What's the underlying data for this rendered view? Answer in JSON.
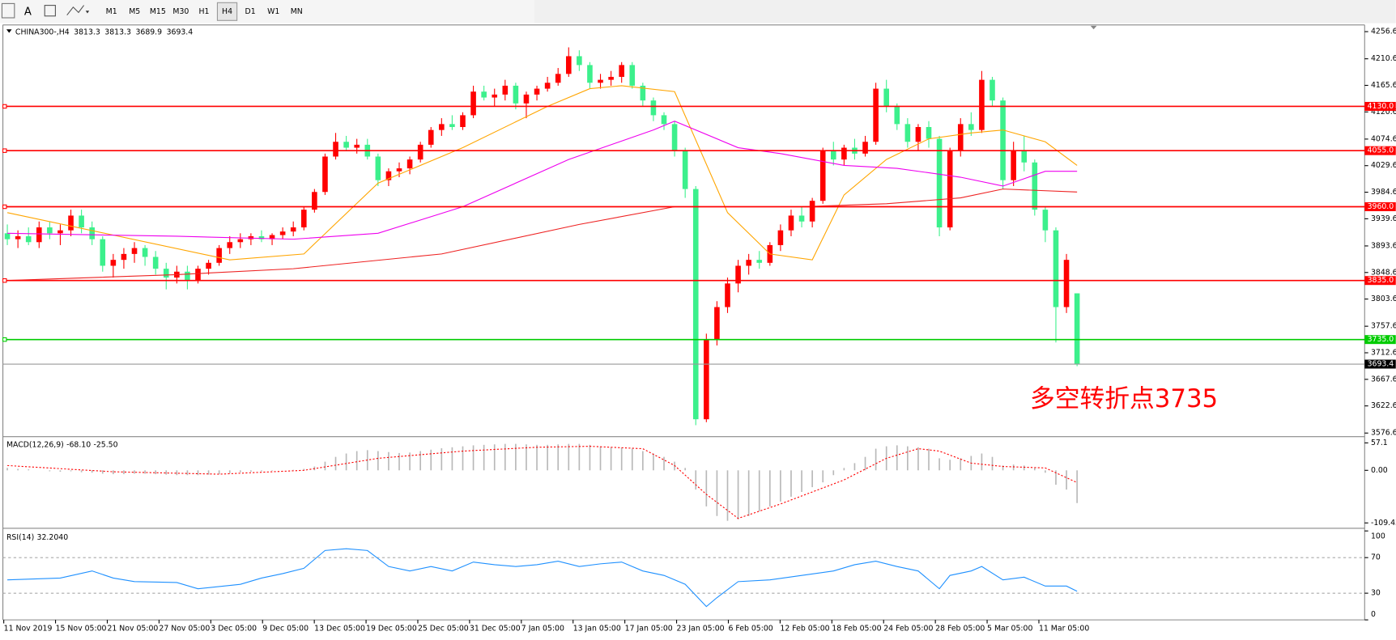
{
  "toolbar": {
    "text_tool": "A",
    "timeframes": [
      "M1",
      "M5",
      "M15",
      "M30",
      "H1",
      "H4",
      "D1",
      "W1",
      "MN"
    ],
    "active": 5
  },
  "chart": {
    "symbol": "CHINA300-,H4",
    "ylim": [
      3572,
      4265
    ],
    "price_ticks": [
      4256.6,
      4210.6,
      4165.6,
      4120.6,
      4074.6,
      4029.6,
      3984.6,
      3939.6,
      3893.6,
      3848.6,
      3803.6,
      3757.6,
      3712.6,
      3667.6,
      3622.6,
      3576.6
    ],
    "up_color": "#ff0000",
    "down_color": "#3cf08c",
    "current_color": "#000000",
    "levels": [
      {
        "value": 4130,
        "label": "4130.0",
        "color": "#ff0000"
      },
      {
        "value": 4055,
        "label": "4055.0",
        "color": "#ff0000"
      },
      {
        "value": 3960,
        "label": "3960.0",
        "color": "#ff0000"
      },
      {
        "value": 3835,
        "label": "3835.0",
        "color": "#ff0000"
      },
      {
        "value": 3735,
        "label": "3735.0",
        "color": "#00cc00"
      }
    ],
    "annotation": "多空转折点3735",
    "candles": [
      [
        3915,
        3930,
        3895,
        3905
      ],
      [
        3905,
        3920,
        3890,
        3910
      ],
      [
        3910,
        3925,
        3895,
        3900
      ],
      [
        3900,
        3935,
        3890,
        3925
      ],
      [
        3925,
        3935,
        3905,
        3915
      ],
      [
        3915,
        3930,
        3895,
        3920
      ],
      [
        3920,
        3955,
        3910,
        3945
      ],
      [
        3945,
        3955,
        3915,
        3925
      ],
      [
        3925,
        3935,
        3895,
        3905
      ],
      [
        3905,
        3910,
        3850,
        3860
      ],
      [
        3860,
        3880,
        3840,
        3870
      ],
      [
        3870,
        3890,
        3855,
        3880
      ],
      [
        3880,
        3900,
        3865,
        3890
      ],
      [
        3890,
        3895,
        3860,
        3875
      ],
      [
        3875,
        3885,
        3845,
        3855
      ],
      [
        3855,
        3865,
        3820,
        3840
      ],
      [
        3840,
        3860,
        3830,
        3850
      ],
      [
        3850,
        3860,
        3820,
        3835
      ],
      [
        3835,
        3860,
        3830,
        3855
      ],
      [
        3855,
        3870,
        3845,
        3865
      ],
      [
        3865,
        3895,
        3860,
        3890
      ],
      [
        3890,
        3910,
        3880,
        3900
      ],
      [
        3900,
        3915,
        3890,
        3905
      ],
      [
        3905,
        3915,
        3895,
        3910
      ],
      [
        3910,
        3920,
        3900,
        3905
      ],
      [
        3905,
        3915,
        3895,
        3912
      ],
      [
        3912,
        3925,
        3905,
        3918
      ],
      [
        3918,
        3935,
        3910,
        3925
      ],
      [
        3925,
        3960,
        3920,
        3955
      ],
      [
        3955,
        3990,
        3950,
        3985
      ],
      [
        3985,
        4050,
        3980,
        4045
      ],
      [
        4045,
        4085,
        4040,
        4070
      ],
      [
        4070,
        4080,
        4055,
        4060
      ],
      [
        4060,
        4075,
        4050,
        4065
      ],
      [
        4065,
        4075,
        4040,
        4045
      ],
      [
        4045,
        4050,
        3995,
        4005
      ],
      [
        4005,
        4025,
        3995,
        4020
      ],
      [
        4020,
        4035,
        4010,
        4025
      ],
      [
        4025,
        4045,
        4015,
        4040
      ],
      [
        4040,
        4070,
        4035,
        4065
      ],
      [
        4065,
        4095,
        4060,
        4090
      ],
      [
        4090,
        4110,
        4080,
        4100
      ],
      [
        4100,
        4115,
        4090,
        4095
      ],
      [
        4095,
        4120,
        4090,
        4115
      ],
      [
        4115,
        4165,
        4110,
        4155
      ],
      [
        4155,
        4165,
        4140,
        4145
      ],
      [
        4145,
        4160,
        4130,
        4150
      ],
      [
        4150,
        4175,
        4140,
        4165
      ],
      [
        4165,
        4170,
        4125,
        4135
      ],
      [
        4135,
        4155,
        4110,
        4150
      ],
      [
        4150,
        4165,
        4140,
        4160
      ],
      [
        4160,
        4180,
        4155,
        4170
      ],
      [
        4170,
        4195,
        4165,
        4185
      ],
      [
        4185,
        4230,
        4180,
        4215
      ],
      [
        4215,
        4225,
        4190,
        4200
      ],
      [
        4200,
        4205,
        4160,
        4170
      ],
      [
        4170,
        4185,
        4160,
        4175
      ],
      [
        4175,
        4190,
        4165,
        4180
      ],
      [
        4180,
        4205,
        4170,
        4200
      ],
      [
        4200,
        4205,
        4160,
        4165
      ],
      [
        4165,
        4170,
        4130,
        4140
      ],
      [
        4140,
        4145,
        4105,
        4115
      ],
      [
        4115,
        4120,
        4090,
        4100
      ],
      [
        4100,
        4105,
        4045,
        4055
      ],
      [
        4055,
        4060,
        3975,
        3990
      ],
      [
        3990,
        3995,
        3590,
        3600
      ],
      [
        3600,
        3745,
        3595,
        3735
      ],
      [
        3735,
        3800,
        3725,
        3790
      ],
      [
        3790,
        3840,
        3780,
        3830
      ],
      [
        3830,
        3870,
        3815,
        3860
      ],
      [
        3860,
        3880,
        3845,
        3870
      ],
      [
        3870,
        3885,
        3855,
        3865
      ],
      [
        3865,
        3900,
        3860,
        3895
      ],
      [
        3895,
        3930,
        3885,
        3920
      ],
      [
        3920,
        3955,
        3910,
        3945
      ],
      [
        3945,
        3960,
        3925,
        3935
      ],
      [
        3935,
        3975,
        3925,
        3970
      ],
      [
        3970,
        4060,
        3965,
        4055
      ],
      [
        4055,
        4070,
        4030,
        4040
      ],
      [
        4040,
        4065,
        4030,
        4060
      ],
      [
        4060,
        4075,
        4040,
        4050
      ],
      [
        4050,
        4080,
        4045,
        4070
      ],
      [
        4070,
        4170,
        4065,
        4160
      ],
      [
        4160,
        4175,
        4120,
        4130
      ],
      [
        4130,
        4135,
        4090,
        4100
      ],
      [
        4100,
        4110,
        4060,
        4070
      ],
      [
        4070,
        4100,
        4055,
        4095
      ],
      [
        4095,
        4105,
        4060,
        4075
      ],
      [
        4075,
        4080,
        3910,
        3925
      ],
      [
        3925,
        4060,
        3920,
        4055
      ],
      [
        4055,
        4110,
        4045,
        4100
      ],
      [
        4100,
        4120,
        4080,
        4090
      ],
      [
        4090,
        4190,
        4085,
        4175
      ],
      [
        4175,
        4180,
        4130,
        4140
      ],
      [
        4140,
        4145,
        3990,
        4005
      ],
      [
        4005,
        4070,
        3995,
        4055
      ],
      [
        4055,
        4080,
        4020,
        4035
      ],
      [
        4035,
        4040,
        3945,
        3955
      ],
      [
        3955,
        3960,
        3900,
        3920
      ],
      [
        3920,
        3925,
        3730,
        3790
      ],
      [
        3790,
        3880,
        3780,
        3870
      ],
      [
        3813.3,
        3813.3,
        3689.9,
        3693.4
      ]
    ],
    "moving_averages": [
      {
        "color": "#ffa500",
        "x": [
          0,
          21,
          28,
          35,
          43,
          51,
          55,
          58,
          63,
          68,
          72,
          76,
          79,
          83,
          87,
          91,
          94,
          98,
          101
        ],
        "values": [
          3950,
          3870,
          3880,
          4000,
          4060,
          4130,
          4160,
          4165,
          4155,
          3950,
          3880,
          3870,
          3980,
          4040,
          4075,
          4085,
          4090,
          4070,
          4030
        ]
      },
      {
        "color": "#ee00ee",
        "x": [
          0,
          16,
          27,
          35,
          43,
          53,
          61,
          63,
          69,
          73,
          79,
          84,
          90,
          94,
          98,
          101
        ],
        "values": [
          3915,
          3910,
          3905,
          3915,
          3960,
          4040,
          4090,
          4105,
          4060,
          4050,
          4030,
          4025,
          4010,
          3995,
          4020,
          4020
        ]
      },
      {
        "color": "#ee2222",
        "x": [
          0,
          16,
          27,
          41,
          54,
          63,
          75,
          83,
          90,
          94,
          101
        ],
        "values": [
          3835,
          3845,
          3855,
          3880,
          3930,
          3960,
          3960,
          3965,
          3975,
          3990,
          3985
        ]
      }
    ],
    "dates": [
      "11 Nov 2019",
      "15 Nov 05:00",
      "21 Nov 05:00",
      "27 Nov 05:00",
      "3 Dec 05:00",
      "9 Dec 05:00",
      "13 Dec 05:00",
      "19 Dec 05:00",
      "25 Dec 05:00",
      "31 Dec 05:00",
      "7 Jan 05:00",
      "13 Jan 05:00",
      "17 Jan 05:00",
      "23 Jan 05:00",
      "6 Feb 05:00",
      "12 Feb 05:00",
      "18 Feb 05:00",
      "24 Feb 05:00",
      "28 Feb 05:00",
      "5 Mar 05:00",
      "11 Mar 05:00"
    ]
  },
  "macd": {
    "name": "MACD(12,26,9)",
    "current": {
      "value": -68.1,
      "label": "-68.10"
    },
    "signal_current": {
      "value": -25.5,
      "label": "-25.50"
    },
    "ylim": [
      -109.43,
      57.1
    ],
    "ticks": [
      57.1,
      {
        "value": 0,
        "label": "0.00"
      },
      -109.43
    ],
    "hist_color": "#b8b8b8",
    "signal_color": "#ff0000",
    "histogram": [
      5,
      3,
      2,
      0,
      -2,
      -3,
      -2,
      -4,
      -5,
      -7,
      -8,
      -8,
      -7,
      -7,
      -8,
      -9,
      -10,
      -10,
      -10,
      -9,
      -8,
      -6,
      -4,
      -3,
      -2,
      -1,
      0,
      1,
      3,
      8,
      18,
      28,
      35,
      40,
      42,
      40,
      38,
      36,
      37,
      40,
      43,
      46,
      48,
      50,
      52,
      53,
      54,
      55,
      55,
      54,
      53,
      53,
      54,
      55,
      55,
      53,
      50,
      48,
      47,
      45,
      40,
      35,
      28,
      18,
      5,
      -40,
      -75,
      -95,
      -105,
      -102,
      -95,
      -85,
      -75,
      -65,
      -55,
      -45,
      -35,
      -25,
      -10,
      5,
      15,
      28,
      45,
      50,
      52,
      50,
      48,
      45,
      25,
      22,
      25,
      30,
      35,
      28,
      10,
      12,
      10,
      5,
      -5,
      -30,
      -40,
      -68.1
    ],
    "signal": {
      "x": [
        0,
        10,
        20,
        28,
        35,
        43,
        50,
        55,
        60,
        63,
        66,
        69,
        73,
        79,
        83,
        86,
        88,
        91,
        94,
        98,
        101
      ],
      "values": [
        10,
        -3,
        -8,
        0,
        25,
        40,
        48,
        50,
        45,
        10,
        -50,
        -100,
        -70,
        -20,
        25,
        45,
        40,
        15,
        8,
        5,
        -25.5
      ]
    }
  },
  "rsi": {
    "name": "RSI(14)",
    "current": {
      "value": 32.204,
      "label": "32.2040"
    },
    "ylim": [
      0,
      100
    ],
    "ticks": [
      100,
      70,
      30,
      0
    ],
    "levels": [
      70,
      30
    ],
    "color": "#1e90ff",
    "x": [
      0,
      5,
      8,
      10,
      12,
      16,
      18,
      22,
      24,
      26,
      28,
      30,
      32,
      34,
      36,
      38,
      40,
      42,
      44,
      46,
      48,
      50,
      52,
      54,
      56,
      58,
      60,
      62,
      64,
      66,
      67,
      69,
      72,
      75,
      78,
      80,
      82,
      84,
      86,
      88,
      89,
      91,
      92,
      94,
      96,
      98,
      100,
      101
    ],
    "values": [
      45,
      47,
      55,
      47,
      43,
      42,
      35,
      40,
      47,
      52,
      58,
      78,
      80,
      78,
      60,
      55,
      60,
      55,
      65,
      62,
      60,
      62,
      66,
      60,
      63,
      65,
      55,
      50,
      40,
      15,
      25,
      43,
      45,
      50,
      55,
      62,
      66,
      60,
      55,
      35,
      50,
      55,
      60,
      45,
      48,
      38,
      38,
      32.204
    ]
  }
}
